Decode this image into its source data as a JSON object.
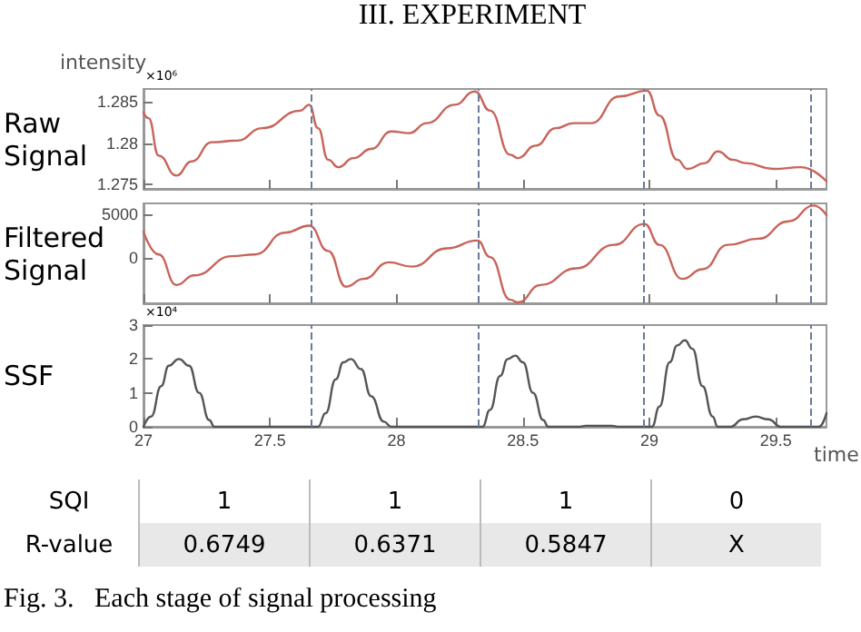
{
  "chart_data": [
    {
      "type": "line",
      "title": "Raw Signal",
      "ylabel": "intensity",
      "annotations": [
        "III. EXPERIMENT",
        "×10⁶"
      ],
      "xlim": [
        27,
        29.7
      ],
      "xticks": [
        27,
        27.5,
        28,
        28.5,
        29,
        29.5
      ],
      "ylim": [
        1.2745,
        1.2865
      ],
      "yticks": [
        1.275,
        1.28,
        1.285
      ],
      "tick_labels": "y",
      "marker": "none",
      "line_style": "solid",
      "ref_lines": [
        {
          "axis": "x",
          "value": 27.655,
          "color": "#6b7a99",
          "line_style": "dashed"
        },
        {
          "axis": "x",
          "value": 28.32,
          "color": "#6b7a99",
          "line_style": "dashed"
        },
        {
          "axis": "x",
          "value": 28.98,
          "color": "#6b7a99",
          "line_style": "dashed"
        },
        {
          "axis": "x",
          "value": 29.64,
          "color": "#6b7a99",
          "line_style": "dashed"
        }
      ],
      "series": [
        {
          "color": "#c8645a",
          "x": [
            27.0,
            27.02,
            27.06,
            27.13,
            27.19,
            27.27,
            27.37,
            27.47,
            27.62,
            27.655,
            27.69,
            27.73,
            27.77,
            27.83,
            27.9,
            27.98,
            28.05,
            28.12,
            28.23,
            28.31,
            28.37,
            28.45,
            28.48,
            28.55,
            28.63,
            28.7,
            28.77,
            28.88,
            28.99,
            29.04,
            29.11,
            29.15,
            29.22,
            29.27,
            29.33,
            29.38,
            29.49,
            29.6,
            29.7
          ],
          "values": [
            1.2837,
            1.283,
            1.2785,
            1.2761,
            1.2778,
            1.2801,
            1.2803,
            1.2818,
            1.2839,
            1.2846,
            1.2818,
            1.278,
            1.2771,
            1.2782,
            1.2793,
            1.2814,
            1.2812,
            1.2824,
            1.2846,
            1.2862,
            1.2839,
            1.2786,
            1.2782,
            1.2797,
            1.2818,
            1.2824,
            1.2824,
            1.2856,
            1.2863,
            1.2833,
            1.278,
            1.2769,
            1.2776,
            1.279,
            1.278,
            1.2776,
            1.2769,
            1.2771,
            1.2754
          ]
        }
      ]
    },
    {
      "type": "line",
      "title": "Filtered Signal",
      "xlim": [
        27,
        29.7
      ],
      "xticks": [
        27,
        27.5,
        28,
        28.5,
        29,
        29.5
      ],
      "ylim": [
        -5200,
        6250
      ],
      "yticks": [
        0,
        5000
      ],
      "tick_labels": "y",
      "marker": "none",
      "line_style": "solid",
      "ref_lines": [
        {
          "axis": "x",
          "value": 27.655,
          "color": "#6b7a99",
          "line_style": "dashed"
        },
        {
          "axis": "x",
          "value": 28.32,
          "color": "#6b7a99",
          "line_style": "dashed"
        },
        {
          "axis": "x",
          "value": 28.98,
          "color": "#6b7a99",
          "line_style": "dashed"
        },
        {
          "axis": "x",
          "value": 29.64,
          "color": "#6b7a99",
          "line_style": "dashed"
        }
      ],
      "series": [
        {
          "color": "#c8645a",
          "x": [
            27.0,
            27.06,
            27.13,
            27.2,
            27.35,
            27.44,
            27.56,
            27.655,
            27.73,
            27.8,
            27.87,
            27.97,
            28.06,
            28.2,
            28.32,
            28.37,
            28.45,
            28.48,
            28.57,
            28.71,
            28.86,
            28.98,
            29.04,
            29.13,
            29.21,
            29.31,
            29.43,
            29.55,
            29.65,
            29.7
          ],
          "values": [
            3000,
            400,
            -3100,
            -2000,
            200,
            400,
            2900,
            3700,
            800,
            -3300,
            -2400,
            -500,
            -1000,
            1100,
            2000,
            100,
            -4800,
            -5100,
            -3100,
            -1200,
            1500,
            3900,
            1500,
            -2400,
            -1300,
            1500,
            2200,
            4200,
            6000,
            4900
          ]
        }
      ]
    },
    {
      "type": "line",
      "title": "SSF",
      "xlabel": "time",
      "annotations": [
        "×10⁴"
      ],
      "xlim": [
        27,
        29.7
      ],
      "xticks": [
        27,
        27.5,
        28,
        28.5,
        29,
        29.5
      ],
      "ylim": [
        0,
        3
      ],
      "yticks": [
        0,
        1,
        2,
        3
      ],
      "marker": "none",
      "line_style": "solid",
      "ref_lines": [
        {
          "axis": "x",
          "value": 27.655,
          "color": "#6b7a99",
          "line_style": "dashed"
        },
        {
          "axis": "x",
          "value": 28.32,
          "color": "#6b7a99",
          "line_style": "dashed"
        },
        {
          "axis": "x",
          "value": 28.98,
          "color": "#6b7a99",
          "line_style": "dashed"
        },
        {
          "axis": "x",
          "value": 29.64,
          "color": "#6b7a99",
          "line_style": "dashed"
        }
      ],
      "series": [
        {
          "color": "#555555",
          "x": [
            27.0,
            27.03,
            27.07,
            27.1,
            27.14,
            27.18,
            27.22,
            27.26,
            27.28,
            27.69,
            27.72,
            27.76,
            27.79,
            27.82,
            27.86,
            27.9,
            27.95,
            27.98,
            28.34,
            28.37,
            28.41,
            28.44,
            28.47,
            28.5,
            28.54,
            28.58,
            28.6,
            28.72,
            28.75,
            28.85,
            28.88,
            29.01,
            29.04,
            29.08,
            29.11,
            29.14,
            29.17,
            29.21,
            29.25,
            29.27,
            29.32,
            29.37,
            29.42,
            29.47,
            29.52,
            29.67,
            29.7
          ],
          "values": [
            0,
            0.3,
            1.2,
            1.8,
            2.0,
            1.8,
            1.0,
            0.2,
            0,
            0,
            0.4,
            1.4,
            1.9,
            2.0,
            1.7,
            0.9,
            0.15,
            0,
            0,
            0.5,
            1.5,
            2.0,
            2.1,
            1.9,
            1.0,
            0.2,
            0,
            0,
            0.03,
            0.03,
            0,
            0,
            0.6,
            1.9,
            2.4,
            2.55,
            2.3,
            1.2,
            0.3,
            0,
            0,
            0.22,
            0.3,
            0.22,
            0,
            0,
            0.4
          ]
        }
      ]
    },
    {
      "type": "other",
      "y_categories": [
        "SQI",
        "R-value"
      ],
      "cell_labels": [
        [
          "1",
          "1",
          "1",
          "0"
        ],
        [
          "0.6749",
          "0.6371",
          "0.5847",
          "X"
        ]
      ],
      "annotations": [
        "Fig. 3.   Each stage of signal processing"
      ]
    }
  ]
}
